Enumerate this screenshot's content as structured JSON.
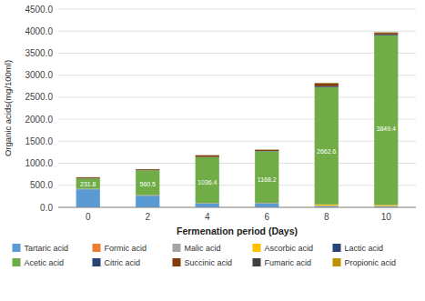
{
  "chart_data": {
    "type": "bar",
    "stacked": true,
    "grid": true,
    "legend": "bottom",
    "xlabel": "Fermenation period (Days)",
    "ylabel": "Organic acids(mg/100ml)",
    "categories": [
      "0",
      "2",
      "4",
      "6",
      "8",
      "10"
    ],
    "ylim": [
      0,
      4500
    ],
    "yticks": [
      {
        "value": 0,
        "label": "0.0"
      },
      {
        "value": 500,
        "label": "500.0"
      },
      {
        "value": 1000,
        "label": "1000.0"
      },
      {
        "value": 1500,
        "label": "1500.0"
      },
      {
        "value": 2000,
        "label": "2000.0"
      },
      {
        "value": 2500,
        "label": "2500.0"
      },
      {
        "value": 3000,
        "label": "3000.0"
      },
      {
        "value": 3500,
        "label": "3500.0"
      },
      {
        "value": 4000,
        "label": "4000.0"
      },
      {
        "value": 4500,
        "label": "4500.0"
      }
    ],
    "series": [
      {
        "name": "Tartaric acid",
        "color": "#5b9bd5",
        "values": [
          410,
          265,
          85,
          90,
          30,
          20
        ]
      },
      {
        "name": "Formic acid",
        "color": "#ed7d31",
        "values": [
          4,
          4,
          4,
          4,
          4,
          4
        ]
      },
      {
        "name": "Malic acid",
        "color": "#a5a5a5",
        "values": [
          4,
          4,
          4,
          4,
          4,
          4
        ]
      },
      {
        "name": "Ascorbic acid",
        "color": "#ffc000",
        "values": [
          2,
          2,
          2,
          2,
          25,
          25
        ]
      },
      {
        "name": "Lactic acid",
        "color": "#264478",
        "values": [
          4,
          4,
          4,
          4,
          4,
          4
        ]
      },
      {
        "name": "Acetic acid",
        "color": "#70ad47",
        "values": [
          231.8,
          560.5,
          1036.4,
          1168.2,
          2662.6,
          3849.4
        ],
        "data_labels": true
      },
      {
        "name": "Citric acid",
        "color": "#264478",
        "values": [
          3,
          4,
          8,
          8,
          18,
          18
        ]
      },
      {
        "name": "Succinic acid",
        "color": "#843c0c",
        "values": [
          20,
          20,
          35,
          25,
          65,
          35
        ]
      },
      {
        "name": "Fumaric acid",
        "color": "#404040",
        "values": [
          3,
          3,
          4,
          4,
          8,
          8
        ]
      },
      {
        "name": "Propionic acid",
        "color": "#bf9000",
        "values": [
          2,
          2,
          4,
          4,
          8,
          8
        ]
      }
    ]
  }
}
